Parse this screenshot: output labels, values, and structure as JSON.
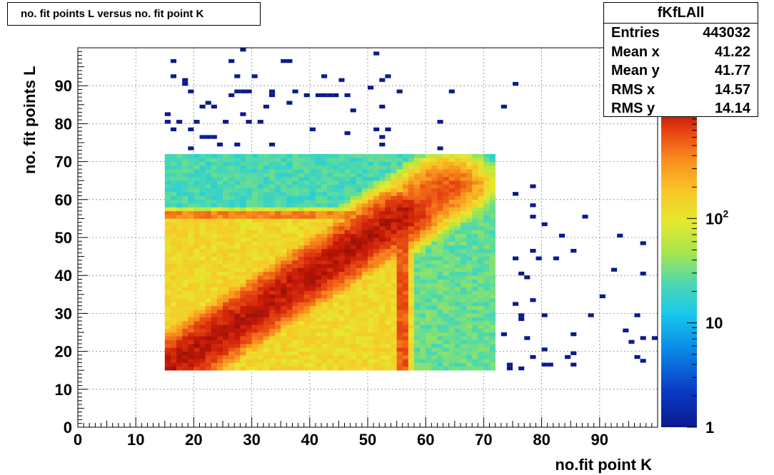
{
  "title": "no. fit points L versus no. fit point K",
  "stats": {
    "name": "fKfLAll",
    "rows": [
      {
        "key": "Entries",
        "value": "443032"
      },
      {
        "key": "Mean x",
        "value": "41.22"
      },
      {
        "key": "Mean y",
        "value": "41.77"
      },
      {
        "key": "RMS x",
        "value": "14.57"
      },
      {
        "key": "RMS y",
        "value": "14.14"
      }
    ]
  },
  "chart_data": {
    "type": "heatmap",
    "title": "no. fit points L versus no. fit point K",
    "xlabel": "no.fit point K",
    "ylabel": "no. fit points  L",
    "xlim": [
      0,
      100
    ],
    "ylim": [
      0,
      100
    ],
    "xticks": [
      "0",
      "10",
      "20",
      "30",
      "40",
      "50",
      "60",
      "70",
      "80",
      "90"
    ],
    "yticks": [
      "0",
      "10",
      "20",
      "30",
      "40",
      "50",
      "60",
      "70",
      "80",
      "90"
    ],
    "grid": true,
    "z_scale": "log",
    "zlim": [
      1,
      1000
    ],
    "colorbar_labels": [
      {
        "value": 1,
        "label": "1"
      },
      {
        "value": 10,
        "label": "10"
      },
      {
        "value": 100,
        "label": "10",
        "sup": "2"
      }
    ],
    "colormap": [
      "#0b1a8c",
      "#0a3cc8",
      "#0a8ae6",
      "#18c8ec",
      "#4cd8b0",
      "#a8e64c",
      "#e6e82c",
      "#f8c428",
      "#f88a1c",
      "#e84812",
      "#c81a08",
      "#7a0c06"
    ],
    "dense_region": {
      "x": [
        15,
        72
      ],
      "y": [
        15,
        72
      ],
      "levels": [
        {
          "x0": 15,
          "x1": 72,
          "y0": 15,
          "y1": 72,
          "z": 12
        },
        {
          "x0": 15,
          "x1": 56,
          "y0": 15,
          "y1": 56,
          "z": 60
        },
        {
          "x0": 56,
          "x1": 72,
          "y0": 15,
          "y1": 56,
          "z": 15
        }
      ]
    },
    "ridges": [
      {
        "from": [
          15,
          15
        ],
        "to": [
          56,
          56
        ],
        "z": 600,
        "width": 3.5
      },
      {
        "from": [
          56,
          15
        ],
        "to": [
          56,
          56
        ],
        "z": 300,
        "width": 0.8
      },
      {
        "from": [
          15,
          56
        ],
        "to": [
          56,
          56
        ],
        "z": 200,
        "width": 0.8
      },
      {
        "from": [
          56,
          56
        ],
        "to": [
          64,
          64
        ],
        "z": 250,
        "width": 4
      }
    ],
    "sparse_points": [
      [
        16,
        96
      ],
      [
        16,
        92
      ],
      [
        18,
        91
      ],
      [
        18,
        90
      ],
      [
        19,
        88
      ],
      [
        21,
        84
      ],
      [
        22,
        85
      ],
      [
        23,
        84
      ],
      [
        26,
        96
      ],
      [
        27,
        92
      ],
      [
        26,
        87
      ],
      [
        27,
        88
      ],
      [
        28,
        99
      ],
      [
        28,
        88
      ],
      [
        29,
        88
      ],
      [
        30,
        92
      ],
      [
        32,
        84
      ],
      [
        33,
        88
      ],
      [
        33,
        87
      ],
      [
        35,
        96
      ],
      [
        36,
        96
      ],
      [
        36,
        85
      ],
      [
        37,
        88
      ],
      [
        39,
        87
      ],
      [
        42,
        92
      ],
      [
        41,
        87
      ],
      [
        42,
        87
      ],
      [
        43,
        87
      ],
      [
        44,
        87
      ],
      [
        45,
        91
      ],
      [
        46,
        87
      ],
      [
        47,
        83
      ],
      [
        50,
        89
      ],
      [
        51,
        98
      ],
      [
        52,
        91
      ],
      [
        53,
        92
      ],
      [
        55,
        88
      ],
      [
        52,
        84
      ],
      [
        64,
        88
      ],
      [
        73,
        84
      ],
      [
        75,
        90
      ],
      [
        15,
        82
      ],
      [
        15,
        80
      ],
      [
        16,
        78
      ],
      [
        17,
        80
      ],
      [
        19,
        78
      ],
      [
        20,
        80
      ],
      [
        21,
        76
      ],
      [
        22,
        76
      ],
      [
        23,
        76
      ],
      [
        24,
        74
      ],
      [
        25,
        80
      ],
      [
        27,
        74
      ],
      [
        28,
        82
      ],
      [
        29,
        80
      ],
      [
        31,
        80
      ],
      [
        33,
        74
      ],
      [
        40,
        78
      ],
      [
        46,
        77
      ],
      [
        51,
        78
      ],
      [
        52,
        76
      ],
      [
        53,
        78
      ],
      [
        52,
        74
      ],
      [
        62,
        80
      ],
      [
        62,
        73
      ],
      [
        19,
        73
      ],
      [
        75,
        61
      ],
      [
        78,
        63
      ],
      [
        78,
        58
      ],
      [
        78,
        55
      ],
      [
        80,
        53
      ],
      [
        83,
        50
      ],
      [
        87,
        55
      ],
      [
        93,
        50
      ],
      [
        97,
        48
      ],
      [
        75,
        44
      ],
      [
        78,
        46
      ],
      [
        79,
        44
      ],
      [
        82,
        44
      ],
      [
        85,
        46
      ],
      [
        92,
        41
      ],
      [
        97,
        40
      ],
      [
        76,
        40
      ],
      [
        77,
        39
      ],
      [
        75,
        32
      ],
      [
        76,
        29
      ],
      [
        76,
        28
      ],
      [
        78,
        33
      ],
      [
        80,
        29
      ],
      [
        88,
        29
      ],
      [
        90,
        34
      ],
      [
        96,
        29
      ],
      [
        94,
        25
      ],
      [
        95,
        22
      ],
      [
        97,
        23
      ],
      [
        99,
        23
      ],
      [
        73,
        24
      ],
      [
        77,
        23
      ],
      [
        80,
        20
      ],
      [
        78,
        18
      ],
      [
        80,
        16
      ],
      [
        81,
        16
      ],
      [
        84,
        18
      ],
      [
        85,
        19
      ],
      [
        85,
        24
      ],
      [
        85,
        16
      ],
      [
        74,
        16
      ],
      [
        74,
        15
      ],
      [
        76,
        15
      ],
      [
        96,
        18
      ],
      [
        97,
        17
      ]
    ]
  }
}
